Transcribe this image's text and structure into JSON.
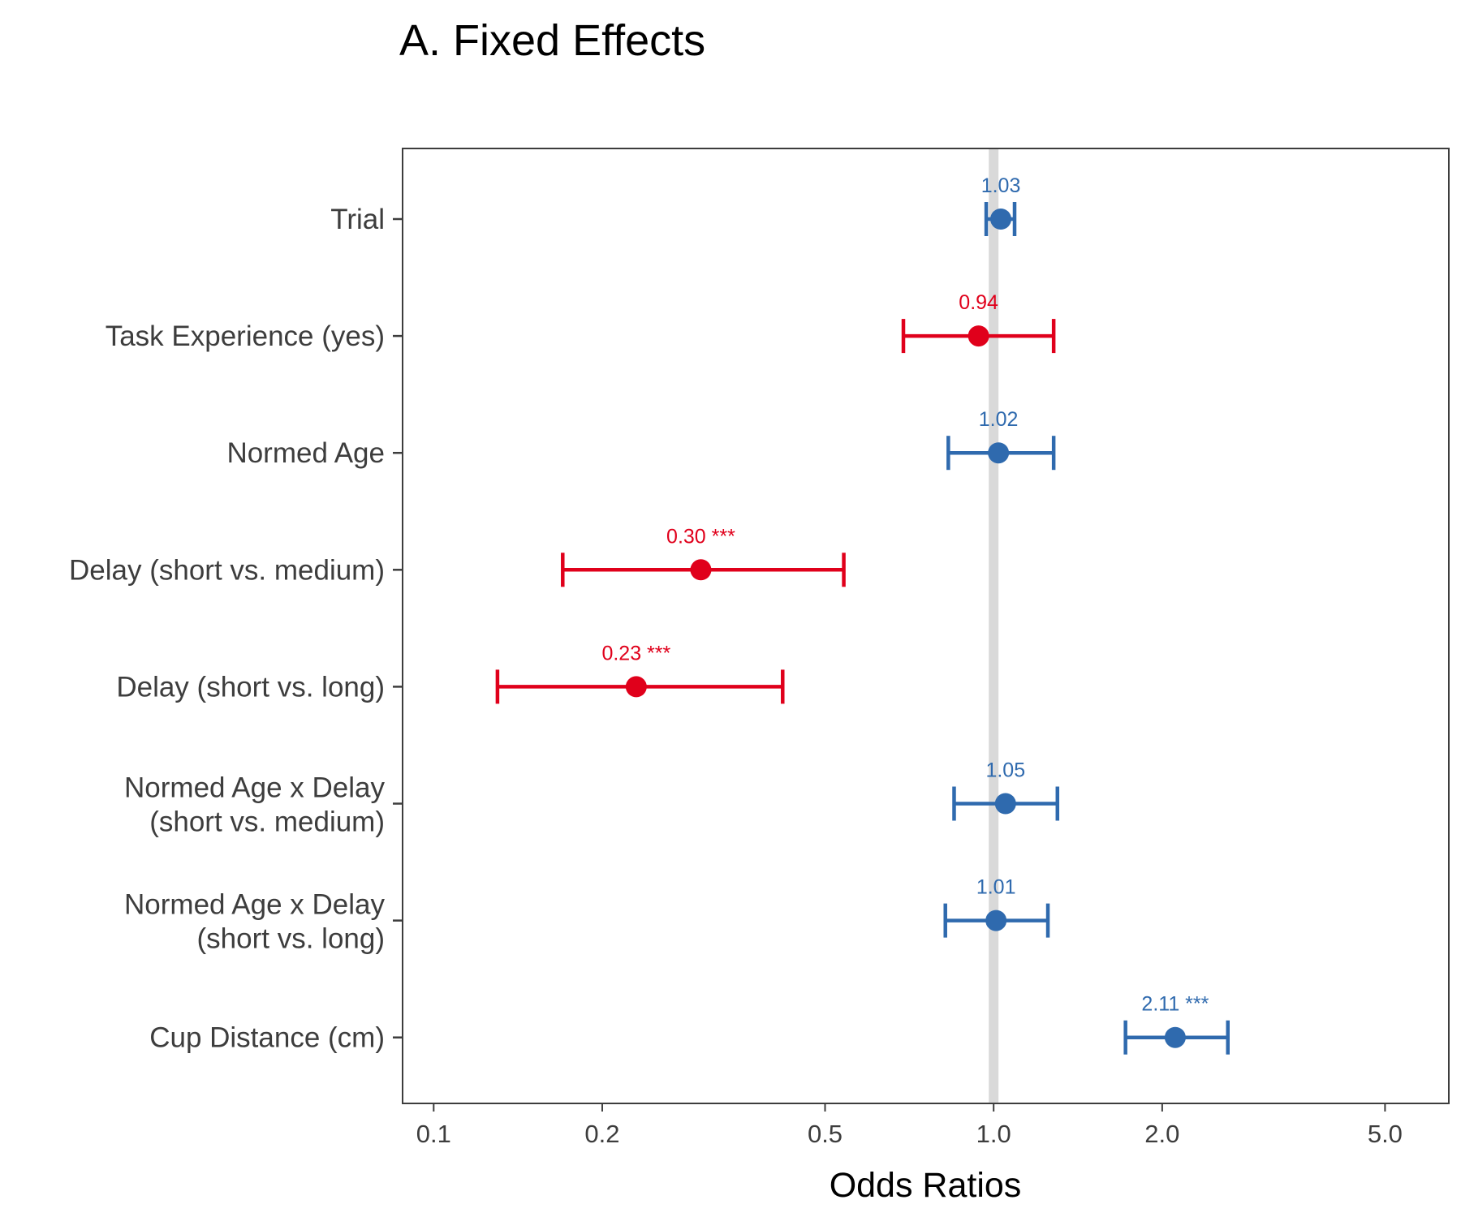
{
  "chart_data": {
    "type": "forest",
    "title": "A. Fixed Effects",
    "xlabel": "Odds Ratios",
    "ylabel": "",
    "x_scale": "log",
    "xlim": [
      0.088,
      6.5
    ],
    "x_ticks": [
      {
        "value": 0.1,
        "label": "0.1"
      },
      {
        "value": 0.2,
        "label": "0.2"
      },
      {
        "value": 0.5,
        "label": "0.5"
      },
      {
        "value": 1.0,
        "label": "1.0"
      },
      {
        "value": 2.0,
        "label": "2.0"
      },
      {
        "value": 5.0,
        "label": "5.0"
      }
    ],
    "reference_line": 1.0,
    "grid": false,
    "colors": {
      "positive": "#2f6aae",
      "negative": "#e0001b",
      "reference": "#d9d9d9",
      "axis": "#3d3d3d"
    },
    "rows": [
      {
        "term": [
          "Trial"
        ],
        "estimate": 1.03,
        "lower": 0.97,
        "upper": 1.09,
        "label": "1.03",
        "direction": "positive"
      },
      {
        "term": [
          "Task Experience (yes)"
        ],
        "estimate": 0.94,
        "lower": 0.69,
        "upper": 1.28,
        "label": "0.94",
        "direction": "negative"
      },
      {
        "term": [
          "Normed Age"
        ],
        "estimate": 1.02,
        "lower": 0.83,
        "upper": 1.28,
        "label": "1.02",
        "direction": "positive"
      },
      {
        "term": [
          "Delay (short vs. medium)"
        ],
        "estimate": 0.3,
        "lower": 0.17,
        "upper": 0.54,
        "label": "0.30 ***",
        "direction": "negative"
      },
      {
        "term": [
          "Delay (short vs. long)"
        ],
        "estimate": 0.23,
        "lower": 0.13,
        "upper": 0.42,
        "label": "0.23 ***",
        "direction": "negative"
      },
      {
        "term": [
          "Normed Age x Delay",
          "(short vs. medium)"
        ],
        "estimate": 1.05,
        "lower": 0.85,
        "upper": 1.3,
        "label": "1.05",
        "direction": "positive"
      },
      {
        "term": [
          "Normed Age x Delay",
          "(short vs. long)"
        ],
        "estimate": 1.01,
        "lower": 0.82,
        "upper": 1.25,
        "label": "1.01",
        "direction": "positive"
      },
      {
        "term": [
          "Cup Distance (cm)"
        ],
        "estimate": 2.11,
        "lower": 1.72,
        "upper": 2.62,
        "label": "2.11 ***",
        "direction": "positive"
      }
    ]
  }
}
